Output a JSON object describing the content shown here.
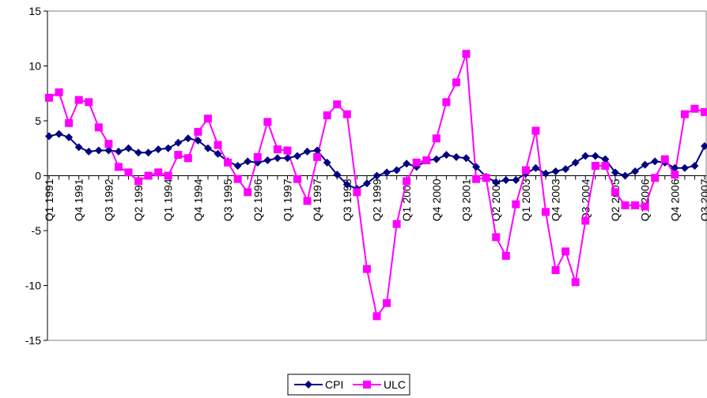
{
  "chart_data": {
    "type": "line",
    "categories": [
      "Q1 1991",
      null,
      null,
      "Q4 1991",
      null,
      null,
      "Q3 1992",
      null,
      null,
      "Q2 1993",
      null,
      null,
      "Q1 1994",
      null,
      null,
      "Q4 1994",
      null,
      null,
      "Q3 1995",
      null,
      null,
      "Q2 1996",
      null,
      null,
      "Q1 1997",
      null,
      null,
      "Q4 1997",
      null,
      null,
      "Q3 1998",
      null,
      null,
      "Q2 1999",
      null,
      null,
      "Q1 2000",
      null,
      null,
      "Q4 2000",
      null,
      null,
      "Q3 2001",
      null,
      null,
      "Q2 2002",
      null,
      null,
      "Q1 2003",
      null,
      null,
      "Q4 2003",
      null,
      null,
      "Q3 2004",
      null,
      null,
      "Q2 2005",
      null,
      null,
      "Q1 2006",
      null,
      null,
      "Q4 2006",
      null,
      null,
      "Q3 2007"
    ],
    "series": [
      {
        "name": "CPI",
        "color": "#000080",
        "marker": "diamond",
        "values": [
          3.6,
          3.8,
          3.5,
          2.6,
          2.2,
          2.3,
          2.3,
          2.2,
          2.5,
          2.1,
          2.1,
          2.4,
          2.5,
          3.0,
          3.4,
          3.2,
          2.5,
          2.0,
          1.3,
          0.9,
          1.3,
          1.2,
          1.4,
          1.6,
          1.6,
          1.8,
          2.2,
          2.3,
          1.2,
          0.1,
          -0.8,
          -1.2,
          -0.7,
          0.0,
          0.3,
          0.5,
          1.1,
          0.8,
          1.4,
          1.5,
          1.9,
          1.7,
          1.6,
          0.8,
          -0.1,
          -0.6,
          -0.4,
          -0.4,
          0.2,
          0.7,
          0.2,
          0.4,
          0.6,
          1.2,
          1.8,
          1.8,
          1.5,
          0.3,
          0.0,
          0.4,
          1.0,
          1.3,
          1.2,
          0.7,
          0.7,
          0.9,
          2.7
        ]
      },
      {
        "name": "ULC",
        "color": "#ff00ff",
        "marker": "square",
        "values": [
          7.1,
          7.6,
          4.8,
          6.9,
          6.7,
          4.4,
          2.9,
          0.8,
          0.3,
          -0.5,
          0.0,
          0.3,
          0.0,
          1.9,
          1.6,
          4.0,
          5.2,
          2.8,
          1.2,
          -0.3,
          -1.5,
          1.7,
          4.9,
          2.4,
          2.3,
          -0.3,
          -2.3,
          1.7,
          5.5,
          6.5,
          5.6,
          -1.5,
          -8.5,
          -12.8,
          -11.6,
          -4.4,
          -0.5,
          1.2,
          1.4,
          3.4,
          6.7,
          8.5,
          11.1,
          -0.3,
          -0.2,
          -5.6,
          -7.3,
          -2.6,
          0.5,
          4.1,
          -3.3,
          -8.6,
          -6.9,
          -9.7,
          -4.1,
          0.9,
          0.9,
          -1.5,
          -2.7,
          -2.7,
          -2.8,
          -0.2,
          1.5,
          0.1,
          5.6,
          6.1,
          5.8
        ]
      }
    ],
    "ylim": [
      -15,
      15
    ],
    "yticks": [
      -15,
      -10,
      -5,
      0,
      5,
      10,
      15
    ],
    "legend": "bottom"
  }
}
